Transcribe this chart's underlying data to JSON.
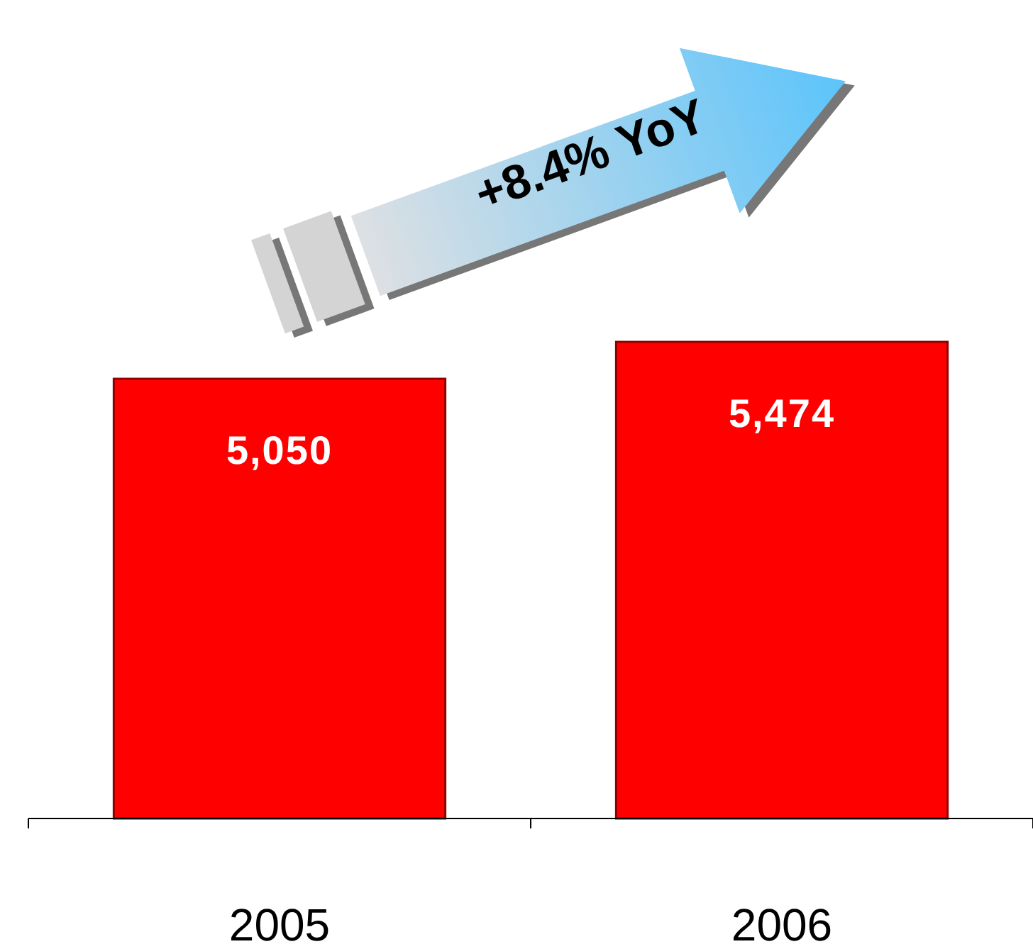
{
  "chart_data": {
    "type": "bar",
    "categories": [
      "2005",
      "2006"
    ],
    "values": [
      5050,
      5474
    ],
    "value_labels": [
      "5,050",
      "5,474"
    ],
    "color": "#ff0000",
    "tick_labels": "x",
    "annotations": [
      "+8.4% YoY"
    ]
  }
}
